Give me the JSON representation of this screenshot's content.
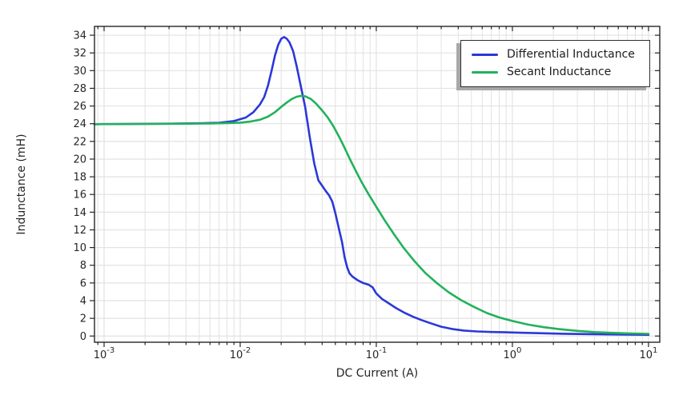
{
  "figure": {
    "background": "#ffffff"
  },
  "chart_data": {
    "type": "line",
    "title": "",
    "xlabel": "DC Current (A)",
    "ylabel": "Indunctance (mH)",
    "x_scale": "log",
    "x_range": [
      0.00085,
      12.1
    ],
    "y_range": [
      -0.7,
      35.0
    ],
    "grid": true,
    "grid_color": "#e2e2e2",
    "axis_color": "#262626",
    "x_major_ticks": [
      {
        "base": "10",
        "exp": "-3",
        "value": 0.001
      },
      {
        "base": "10",
        "exp": "-2",
        "value": 0.01
      },
      {
        "base": "10",
        "exp": "-1",
        "value": 0.1
      },
      {
        "base": "10",
        "exp": "0",
        "value": 1
      },
      {
        "base": "10",
        "exp": "1",
        "value": 10
      }
    ],
    "y_ticks": [
      0,
      2,
      4,
      6,
      8,
      10,
      12,
      14,
      16,
      18,
      20,
      22,
      24,
      26,
      28,
      30,
      32,
      34
    ],
    "legend": {
      "position": "top-right",
      "items": [
        {
          "label": "Differential Inductance",
          "color": "#2b38d8"
        },
        {
          "label": "Secant Inductance",
          "color": "#22b15c"
        }
      ]
    },
    "series": [
      {
        "name": "Differential Inductance",
        "color": "#2b38d8",
        "points": [
          [
            0.00085,
            23.95
          ],
          [
            0.0015,
            23.97
          ],
          [
            0.003,
            24.0
          ],
          [
            0.005,
            24.05
          ],
          [
            0.007,
            24.1
          ],
          [
            0.009,
            24.3
          ],
          [
            0.011,
            24.7
          ],
          [
            0.0125,
            25.3
          ],
          [
            0.014,
            26.2
          ],
          [
            0.015,
            27.0
          ],
          [
            0.016,
            28.3
          ],
          [
            0.017,
            30.0
          ],
          [
            0.018,
            31.7
          ],
          [
            0.019,
            32.9
          ],
          [
            0.02,
            33.6
          ],
          [
            0.021,
            33.8
          ],
          [
            0.022,
            33.6
          ],
          [
            0.023,
            33.2
          ],
          [
            0.0245,
            32.2
          ],
          [
            0.026,
            30.5
          ],
          [
            0.028,
            28.1
          ],
          [
            0.03,
            25.9
          ],
          [
            0.0325,
            22.4
          ],
          [
            0.035,
            19.5
          ],
          [
            0.0375,
            17.6
          ],
          [
            0.04,
            17.0
          ],
          [
            0.0425,
            16.4
          ],
          [
            0.045,
            15.9
          ],
          [
            0.0475,
            15.2
          ],
          [
            0.05,
            13.9
          ],
          [
            0.053,
            12.2
          ],
          [
            0.056,
            10.6
          ],
          [
            0.0585,
            8.9
          ],
          [
            0.061,
            7.8
          ],
          [
            0.0635,
            7.1
          ],
          [
            0.067,
            6.7
          ],
          [
            0.073,
            6.3
          ],
          [
            0.08,
            6.0
          ],
          [
            0.088,
            5.8
          ],
          [
            0.094,
            5.5
          ],
          [
            0.1,
            4.8
          ],
          [
            0.11,
            4.2
          ],
          [
            0.125,
            3.65
          ],
          [
            0.14,
            3.15
          ],
          [
            0.16,
            2.65
          ],
          [
            0.185,
            2.2
          ],
          [
            0.215,
            1.8
          ],
          [
            0.25,
            1.45
          ],
          [
            0.3,
            1.05
          ],
          [
            0.36,
            0.8
          ],
          [
            0.44,
            0.62
          ],
          [
            0.55,
            0.52
          ],
          [
            0.7,
            0.46
          ],
          [
            0.9,
            0.42
          ],
          [
            1.2,
            0.37
          ],
          [
            1.7,
            0.31
          ],
          [
            2.4,
            0.26
          ],
          [
            3.5,
            0.22
          ],
          [
            5.0,
            0.19
          ],
          [
            7.0,
            0.16
          ],
          [
            10,
            0.14
          ]
        ]
      },
      {
        "name": "Secant Inductance",
        "color": "#22b15c",
        "points": [
          [
            0.00085,
            23.95
          ],
          [
            0.002,
            23.97
          ],
          [
            0.004,
            24.0
          ],
          [
            0.006,
            24.03
          ],
          [
            0.008,
            24.07
          ],
          [
            0.01,
            24.12
          ],
          [
            0.012,
            24.25
          ],
          [
            0.014,
            24.45
          ],
          [
            0.016,
            24.8
          ],
          [
            0.018,
            25.3
          ],
          [
            0.02,
            25.9
          ],
          [
            0.022,
            26.4
          ],
          [
            0.024,
            26.8
          ],
          [
            0.026,
            27.05
          ],
          [
            0.028,
            27.15
          ],
          [
            0.03,
            27.1
          ],
          [
            0.033,
            26.8
          ],
          [
            0.036,
            26.3
          ],
          [
            0.04,
            25.5
          ],
          [
            0.044,
            24.7
          ],
          [
            0.048,
            23.8
          ],
          [
            0.053,
            22.6
          ],
          [
            0.058,
            21.4
          ],
          [
            0.064,
            20.0
          ],
          [
            0.07,
            18.8
          ],
          [
            0.078,
            17.4
          ],
          [
            0.088,
            16.0
          ],
          [
            0.1,
            14.6
          ],
          [
            0.115,
            13.1
          ],
          [
            0.135,
            11.5
          ],
          [
            0.16,
            9.9
          ],
          [
            0.19,
            8.5
          ],
          [
            0.23,
            7.1
          ],
          [
            0.28,
            5.95
          ],
          [
            0.34,
            4.95
          ],
          [
            0.42,
            4.05
          ],
          [
            0.52,
            3.3
          ],
          [
            0.65,
            2.6
          ],
          [
            0.8,
            2.1
          ],
          [
            1.0,
            1.7
          ],
          [
            1.3,
            1.3
          ],
          [
            1.7,
            1.0
          ],
          [
            2.2,
            0.78
          ],
          [
            3.0,
            0.58
          ],
          [
            4.0,
            0.45
          ],
          [
            5.5,
            0.36
          ],
          [
            7.5,
            0.29
          ],
          [
            10,
            0.25
          ]
        ]
      }
    ]
  }
}
